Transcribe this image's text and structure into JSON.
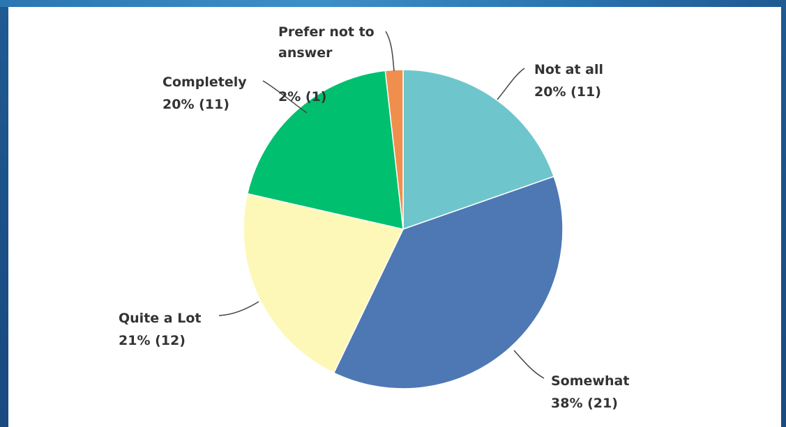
{
  "colors": {
    "background": "#1f5a92",
    "panel": "#ffffff",
    "leader": "#444444"
  },
  "chart_data": {
    "type": "pie",
    "start_angle_deg": 0,
    "direction": "clockwise",
    "slices": [
      {
        "label": "Not at all",
        "percent_label": "20% (11)",
        "percent": 20,
        "count": 11,
        "color": "#6ec6cc"
      },
      {
        "label": "Somewhat",
        "percent_label": "38% (21)",
        "percent": 38,
        "count": 21,
        "color": "#4e78b3"
      },
      {
        "label": "Quite a Lot",
        "percent_label": "21% (12)",
        "percent": 21,
        "count": 12,
        "color": "#fdf8b8"
      },
      {
        "label": "Completely",
        "percent_label": "20% (11)",
        "percent": 20,
        "count": 11,
        "color": "#00bf6f"
      },
      {
        "label": "Prefer not to answer",
        "label_lines": [
          "Prefer not to",
          "answer"
        ],
        "percent_label": "2% (1)",
        "percent": 2,
        "count": 1,
        "color": "#f08e4d"
      }
    ]
  }
}
